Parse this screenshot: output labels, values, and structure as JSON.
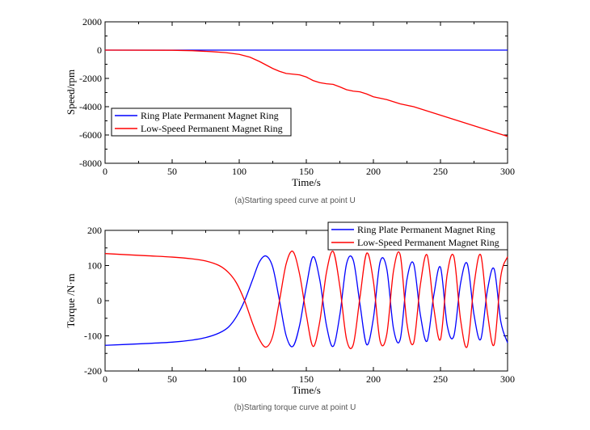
{
  "chart_data": [
    {
      "type": "line",
      "caption": "(a)Starting speed curve at point U",
      "xlabel": "Time/s",
      "ylabel": "Speed/rpm",
      "xlim": [
        0,
        300
      ],
      "ylim": [
        -8000,
        2000
      ],
      "xticks": [
        0,
        50,
        100,
        150,
        200,
        250,
        300
      ],
      "yticks": [
        -8000,
        -6000,
        -4000,
        -2000,
        0,
        2000
      ],
      "legend_position": "middle-left",
      "grid": false,
      "series": [
        {
          "name": "Ring Plate Permanent Magnet Ring",
          "color": "#0000ff",
          "x": [
            0,
            300
          ],
          "y": [
            0,
            0
          ]
        },
        {
          "name": "Low-Speed Permanent Magnet Ring",
          "color": "#ff0000",
          "x": [
            0,
            50,
            65,
            80,
            90,
            100,
            108,
            115,
            120,
            125,
            130,
            135,
            140,
            145,
            150,
            155,
            160,
            165,
            170,
            175,
            180,
            185,
            190,
            195,
            200,
            205,
            210,
            215,
            220,
            225,
            230,
            235,
            240,
            245,
            250,
            255,
            260,
            265,
            270,
            275,
            280,
            285,
            290,
            295,
            300
          ],
          "y": [
            0,
            -10,
            -40,
            -110,
            -180,
            -300,
            -500,
            -800,
            -1050,
            -1300,
            -1500,
            -1650,
            -1700,
            -1750,
            -1900,
            -2150,
            -2300,
            -2380,
            -2420,
            -2600,
            -2800,
            -2900,
            -2950,
            -3100,
            -3300,
            -3400,
            -3500,
            -3650,
            -3800,
            -3900,
            -4000,
            -4150,
            -4300,
            -4450,
            -4600,
            -4750,
            -4900,
            -5050,
            -5200,
            -5350,
            -5500,
            -5650,
            -5800,
            -5950,
            -6100
          ]
        }
      ]
    },
    {
      "type": "line",
      "caption": "(b)Starting torque curve at point U",
      "xlabel": "Time/s",
      "ylabel": "Torque /N·m",
      "xlim": [
        0,
        300
      ],
      "ylim": [
        -200,
        200
      ],
      "xticks": [
        0,
        50,
        100,
        150,
        200,
        250,
        300
      ],
      "yticks": [
        -200,
        -100,
        0,
        100,
        200
      ],
      "legend_position": "top-right",
      "grid": false,
      "series": [
        {
          "name": "Ring Plate Permanent Magnet Ring",
          "color": "#0000ff",
          "x": [
            0,
            30,
            50,
            65,
            75,
            85,
            92,
            98,
            104,
            110,
            115,
            120,
            125,
            130,
            135,
            140,
            145,
            150,
            155,
            160,
            165,
            170,
            175,
            180,
            185,
            190,
            195,
            200,
            205,
            210,
            215,
            220,
            225,
            230,
            235,
            240,
            245,
            250,
            255,
            260,
            265,
            270,
            275,
            280,
            285,
            290,
            295,
            300
          ],
          "y": [
            -127,
            -122,
            -118,
            -112,
            -105,
            -92,
            -75,
            -45,
            0,
            60,
            110,
            127,
            95,
            0,
            -100,
            -130,
            -70,
            40,
            125,
            60,
            -70,
            -130,
            -40,
            105,
            115,
            -10,
            -125,
            -50,
            110,
            90,
            -80,
            -110,
            60,
            105,
            -40,
            -115,
            15,
            95,
            -70,
            -100,
            50,
            105,
            -40,
            -110,
            30,
            90,
            -60,
            -120
          ],
          "smooth": true
        },
        {
          "name": "Low-Speed Permanent Magnet Ring",
          "color": "#ff0000",
          "x": [
            0,
            30,
            50,
            65,
            75,
            85,
            92,
            98,
            104,
            110,
            115,
            120,
            125,
            130,
            135,
            140,
            145,
            150,
            155,
            160,
            165,
            170,
            175,
            180,
            185,
            190,
            195,
            200,
            205,
            210,
            215,
            220,
            225,
            230,
            235,
            240,
            245,
            250,
            255,
            260,
            265,
            270,
            275,
            280,
            285,
            290,
            295,
            300
          ],
          "y": [
            134,
            128,
            124,
            119,
            113,
            100,
            80,
            50,
            0,
            -65,
            -110,
            -132,
            -100,
            0,
            105,
            140,
            75,
            -40,
            -130,
            -60,
            80,
            140,
            40,
            -110,
            -125,
            10,
            135,
            55,
            -115,
            -95,
            85,
            130,
            -65,
            -120,
            45,
            130,
            -20,
            -110,
            75,
            125,
            -55,
            -130,
            45,
            130,
            -35,
            -125,
            70,
            125
          ],
          "smooth": true
        }
      ]
    }
  ]
}
